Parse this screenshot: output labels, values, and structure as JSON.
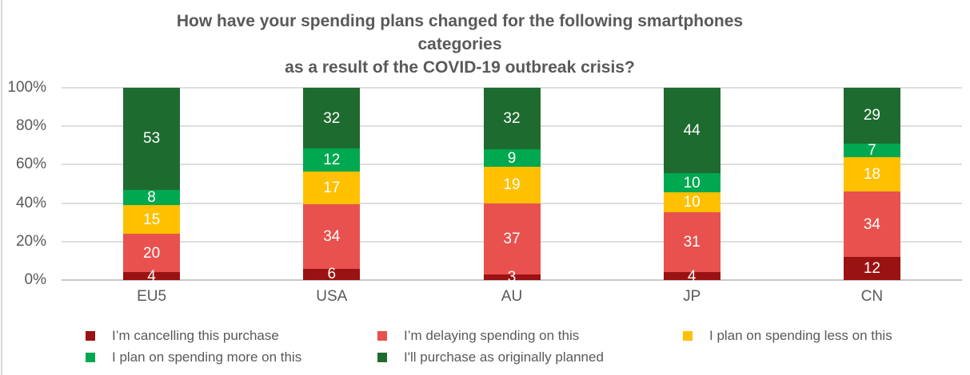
{
  "title": {
    "line1": "How have your spending plans changed for the following smartphones",
    "line2": "categories",
    "line3": "as a result of the COVID-19 outbreak crisis?"
  },
  "chart_data": {
    "type": "bar",
    "stacked": true,
    "percent_stacked": true,
    "title": "How have your spending plans changed for the following smartphones categories as a result of the COVID-19 outbreak crisis?",
    "categories": [
      "EU5",
      "USA",
      "AU",
      "JP",
      "CN"
    ],
    "series": [
      {
        "name": "I’m cancelling this purchase",
        "color": "#9a1212",
        "values": [
          4,
          6,
          3,
          4,
          12
        ]
      },
      {
        "name": "I’m delaying spending on this",
        "color": "#e8514d",
        "values": [
          20,
          34,
          37,
          31,
          34
        ]
      },
      {
        "name": "I plan on spending less on this",
        "color": "#ffc000",
        "values": [
          15,
          17,
          19,
          10,
          18
        ]
      },
      {
        "name": "I plan on spending more on this",
        "color": "#00a84f",
        "values": [
          8,
          12,
          9,
          10,
          7
        ]
      },
      {
        "name": "I'll purchase as originally planned",
        "color": "#1e6b2f",
        "values": [
          53,
          32,
          32,
          44,
          29
        ]
      }
    ],
    "y_axis": {
      "tick_labels": [
        "0%",
        "20%",
        "40%",
        "60%",
        "80%",
        "100%"
      ],
      "min": 0,
      "max": 100
    },
    "grid": true,
    "legend_position": "bottom",
    "value_labels": "shown inside segments, white"
  },
  "colors": {
    "text": "#595959",
    "gridline": "#dedede",
    "axis_line": "#c9c7c7",
    "value_label": "#ffffff",
    "background": "#ffffff",
    "frame_border": "#d9d9d9"
  }
}
